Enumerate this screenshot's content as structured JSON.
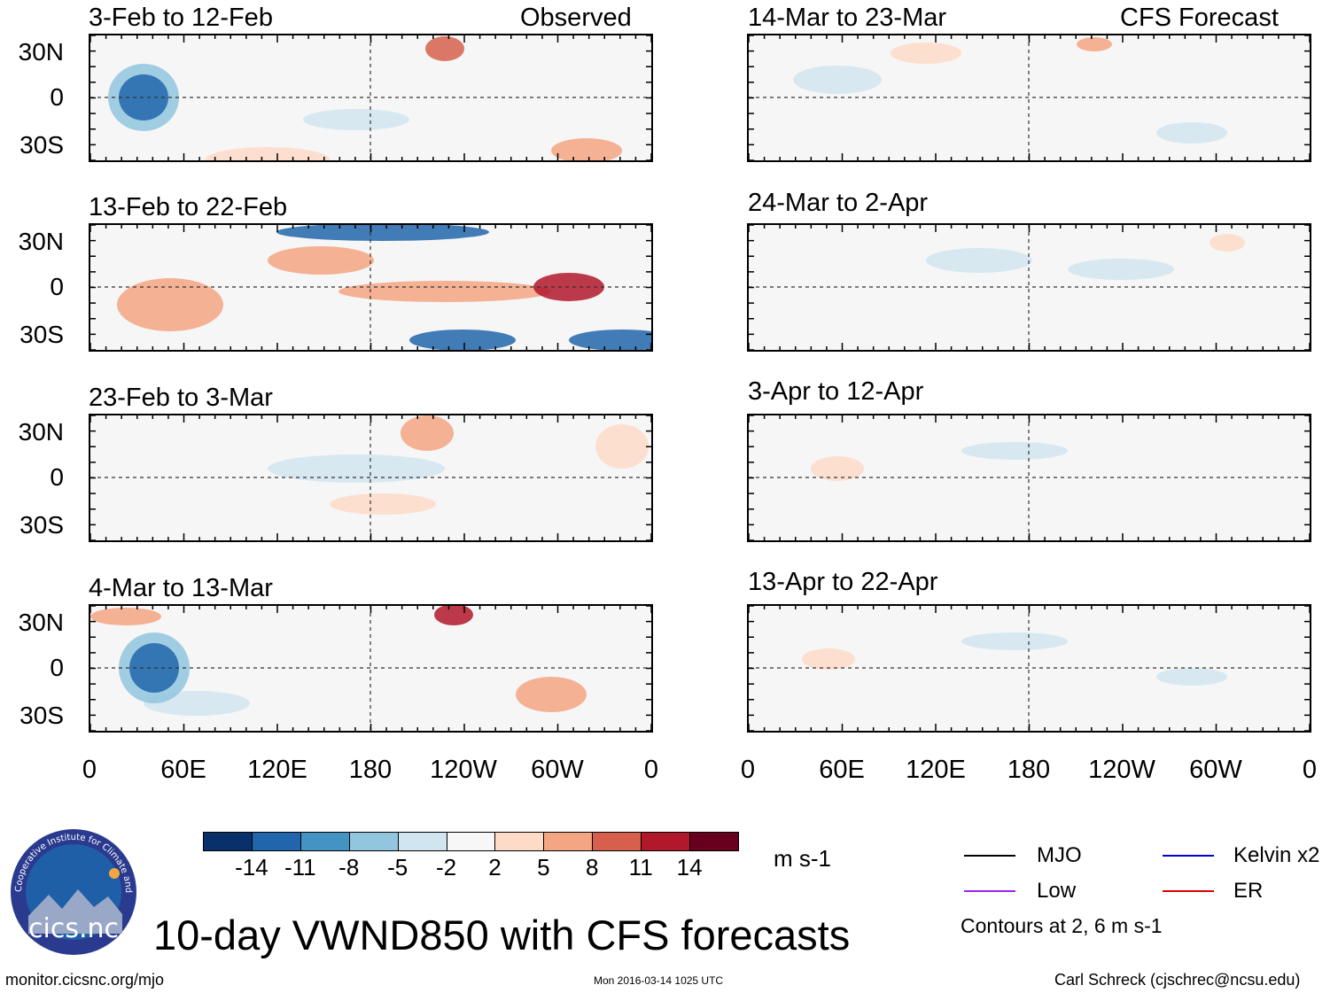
{
  "observed_label": "Observed",
  "forecast_label": "CFS Forecast",
  "left_panels": [
    {
      "title": "3-Feb to 12-Feb"
    },
    {
      "title": "13-Feb to 22-Feb"
    },
    {
      "title": "23-Feb to 3-Mar"
    },
    {
      "title": "4-Mar to 13-Mar"
    }
  ],
  "right_panels": [
    {
      "title": "14-Mar to 23-Mar"
    },
    {
      "title": "24-Mar to 2-Apr"
    },
    {
      "title": "3-Apr to 12-Apr"
    },
    {
      "title": "13-Apr to 22-Apr"
    }
  ],
  "lat_labels": [
    "30N",
    "0",
    "30S"
  ],
  "lon_labels": [
    "0",
    "60E",
    "120E",
    "180",
    "120W",
    "60W",
    "0"
  ],
  "colorbar": {
    "colors": [
      "#08306b",
      "#2166ac",
      "#4393c3",
      "#92c5de",
      "#d1e5f0",
      "#f7f7f7",
      "#fddbc7",
      "#f4a582",
      "#d6604d",
      "#b2182b",
      "#67001f"
    ],
    "ticks": [
      "-14",
      "-11",
      "-8",
      "-5",
      "-2",
      "2",
      "5",
      "8",
      "11",
      "14"
    ],
    "units": "m s-1"
  },
  "legend": {
    "items": [
      {
        "label": "MJO",
        "color": "#000000"
      },
      {
        "label": "Kelvin x2",
        "color": "#0000dd"
      },
      {
        "label": "Low",
        "color": "#a020f0"
      },
      {
        "label": "ER",
        "color": "#dd0000"
      }
    ],
    "note": "Contours at 2, 6 m s-1"
  },
  "logo_text": "cics.nc",
  "logo_ring_text": "Cooperative Institute for Climate and Satellites",
  "main_title": "10-day VWND850 with CFS forecasts",
  "footer": {
    "url": "monitor.cicsnc.org/mjo",
    "timestamp": "Mon 2016-03-14 1025 UTC",
    "author": "Carl Schreck (cjschrec@ncsu.edu)"
  }
}
